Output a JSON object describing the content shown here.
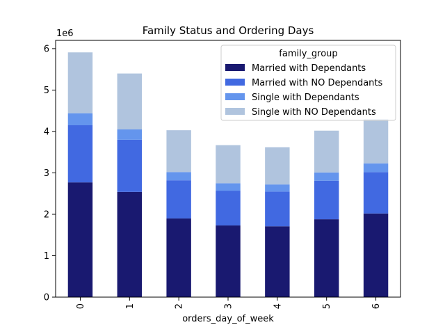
{
  "chart_data": {
    "type": "bar",
    "stacked": true,
    "title": "Family Status and Ordering Days",
    "xlabel": "orders_day_of_week",
    "ylabel": "",
    "y_multiplier_label": "1e6",
    "ylim": [
      0,
      6200000
    ],
    "y_ticks": [
      0,
      1000000,
      2000000,
      3000000,
      4000000,
      5000000,
      6000000
    ],
    "y_tick_labels": [
      "0",
      "1",
      "2",
      "3",
      "4",
      "5",
      "6"
    ],
    "categories": [
      "0",
      "1",
      "2",
      "3",
      "4",
      "5",
      "6"
    ],
    "legend_title": "family_group",
    "legend_position": "upper-right",
    "grid": false,
    "series": [
      {
        "name": "Married with Dependants",
        "color": "#191970",
        "values": [
          2770000,
          2540000,
          1900000,
          1730000,
          1710000,
          1880000,
          2020000
        ]
      },
      {
        "name": "Married with NO Dependants",
        "color": "#4169e1",
        "values": [
          1380000,
          1260000,
          920000,
          840000,
          840000,
          930000,
          1000000
        ]
      },
      {
        "name": "Single with Dependants",
        "color": "#6495ed",
        "values": [
          290000,
          250000,
          200000,
          180000,
          170000,
          200000,
          210000
        ]
      },
      {
        "name": "Single with NO Dependants",
        "color": "#b0c4de",
        "values": [
          1470000,
          1350000,
          1010000,
          920000,
          900000,
          1010000,
          1070000
        ]
      }
    ]
  }
}
